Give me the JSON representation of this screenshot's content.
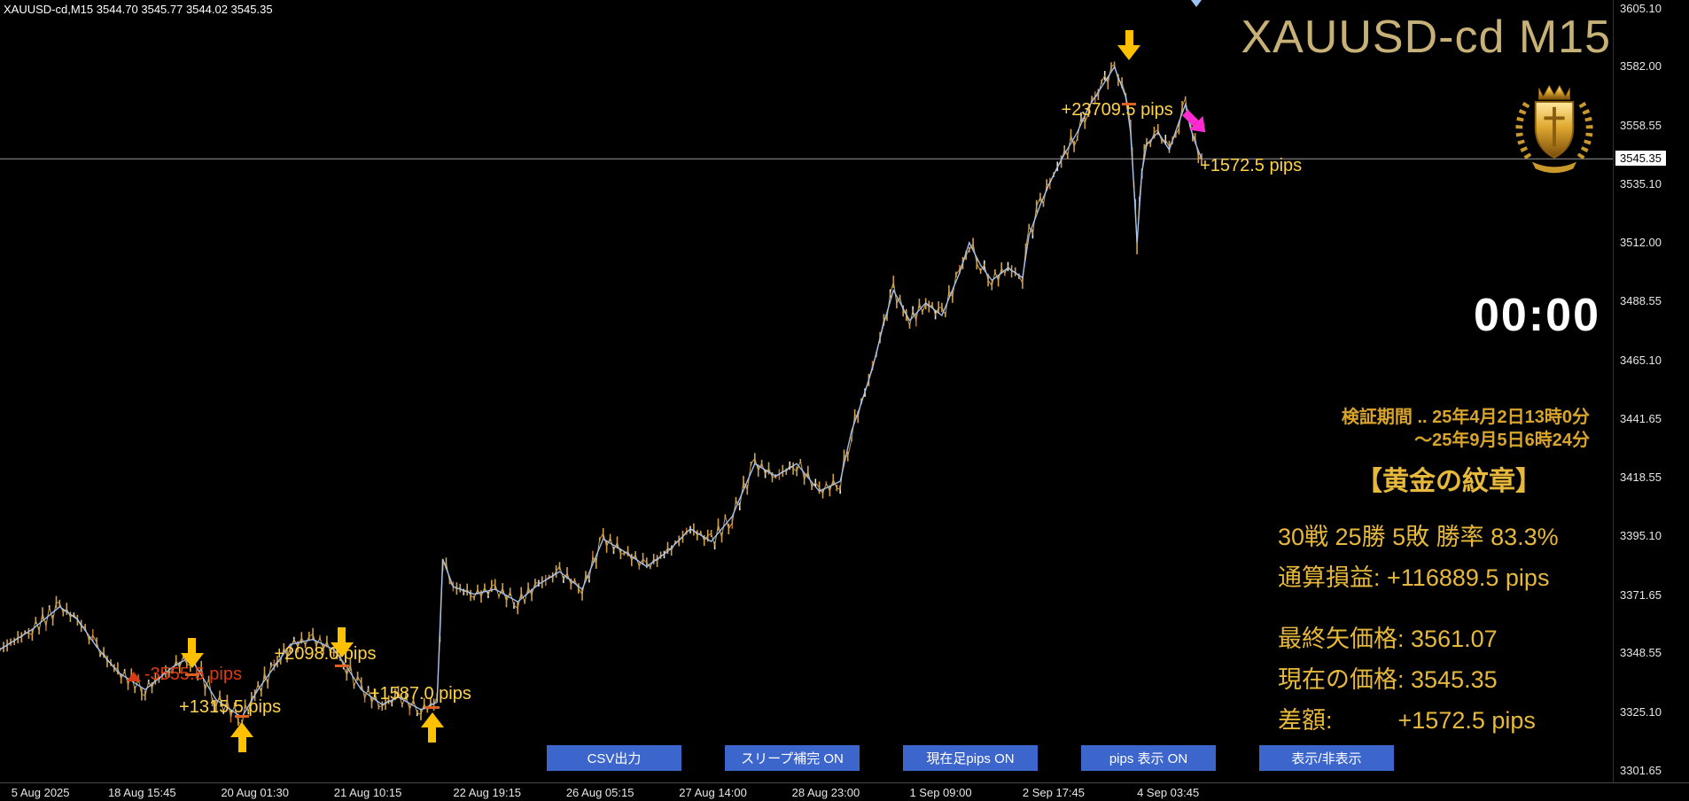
{
  "window": {
    "ohlc_line": "XAUUSD-cd,M15  3544.70 3545.77 3544.02 3545.35"
  },
  "header": {
    "title": "XAUUSD-cd M15"
  },
  "timer": {
    "value": "00:00"
  },
  "stats": {
    "period_line1": "検証期間 .. 25年4月2日13時0分",
    "period_line2": "～25年9月5日6時24分",
    "emblem_title": "【黄金の紋章】",
    "record": "30戦 25勝 5敗  勝率 83.3%",
    "total_label": "通算損益:",
    "total_value": "+116889.5 pips",
    "last_label": "最終矢価格:",
    "last_value": "3561.07",
    "current_label": "現在の価格:",
    "current_value": "3545.35",
    "diff_label": "差額:",
    "diff_value": "+1572.5 pips"
  },
  "buttons": [
    {
      "name": "csv-export-button",
      "label": "CSV出力"
    },
    {
      "name": "sleep-complete-toggle",
      "label": "スリープ補完 ON"
    },
    {
      "name": "current-bar-pips-toggle",
      "label": "現在足pips ON"
    },
    {
      "name": "pips-display-toggle",
      "label": "pips 表示  ON"
    },
    {
      "name": "show-hide-toggle",
      "label": "表示/非表示"
    }
  ],
  "price_axis": {
    "labels": [
      {
        "label": "3605.10",
        "value": 3605.1
      },
      {
        "label": "3582.00",
        "value": 3582.0
      },
      {
        "label": "3558.55",
        "value": 3558.55
      },
      {
        "label": "3535.10",
        "value": 3535.1
      },
      {
        "label": "3512.00",
        "value": 3512.0
      },
      {
        "label": "3488.55",
        "value": 3488.55
      },
      {
        "label": "3465.10",
        "value": 3465.1
      },
      {
        "label": "3441.65",
        "value": 3441.65
      },
      {
        "label": "3418.55",
        "value": 3418.55
      },
      {
        "label": "3395.10",
        "value": 3395.1
      },
      {
        "label": "3371.65",
        "value": 3371.65
      },
      {
        "label": "3348.55",
        "value": 3348.55
      },
      {
        "label": "3325.10",
        "value": 3325.1
      },
      {
        "label": "3301.65",
        "value": 3301.65
      }
    ],
    "current_label": "3545.35",
    "current_value": 3545.35
  },
  "time_axis": [
    {
      "label": "5 Aug 2025",
      "x": 0.007
    },
    {
      "label": "18 Aug 15:45",
      "x": 0.067
    },
    {
      "label": "20 Aug 01:30",
      "x": 0.137
    },
    {
      "label": "21 Aug 10:15",
      "x": 0.207
    },
    {
      "label": "22 Aug 19:15",
      "x": 0.281
    },
    {
      "label": "26 Aug 05:15",
      "x": 0.351
    },
    {
      "label": "27 Aug 14:00",
      "x": 0.421
    },
    {
      "label": "28 Aug 23:00",
      "x": 0.491
    },
    {
      "label": "1 Sep 09:00",
      "x": 0.564
    },
    {
      "label": "2 Sep 17:45",
      "x": 0.634
    },
    {
      "label": "4 Sep 03:45",
      "x": 0.705
    }
  ],
  "chart_data": {
    "type": "candlestick",
    "symbol": "XAUUSD-cd",
    "timeframe": "M15",
    "ylim": [
      3301.65,
      3605.1
    ],
    "current_price": 3545.35,
    "colors": {
      "candle_gold": "#d2a04a",
      "candle_light": "#ece2cc",
      "overlay_blue": "#a9c6f5",
      "price_line": "#9a9a9a",
      "win_label": "#ffd24a",
      "loss_label": "#dc3a12",
      "arrow_yellow": "#ffc000",
      "arrow_magenta": "#ff2ad0",
      "entry_tick": "#e06020",
      "button_blue": "#3d66cc",
      "gold_text": "#e6b83c"
    },
    "series": [
      {
        "name": "price",
        "points": [
          [
            0.0,
            3350
          ],
          [
            0.02,
            3358
          ],
          [
            0.037,
            3367
          ],
          [
            0.048,
            3362
          ],
          [
            0.06,
            3351
          ],
          [
            0.073,
            3341
          ],
          [
            0.09,
            3334
          ],
          [
            0.107,
            3343
          ],
          [
            0.118,
            3347
          ],
          [
            0.134,
            3330
          ],
          [
            0.15,
            3323
          ],
          [
            0.16,
            3334
          ],
          [
            0.17,
            3343
          ],
          [
            0.18,
            3352
          ],
          [
            0.194,
            3354
          ],
          [
            0.207,
            3350
          ],
          [
            0.215,
            3343
          ],
          [
            0.224,
            3334
          ],
          [
            0.237,
            3328
          ],
          [
            0.247,
            3331
          ],
          [
            0.261,
            3326
          ],
          [
            0.271,
            3329
          ],
          [
            0.2745,
            3386
          ],
          [
            0.281,
            3375
          ],
          [
            0.294,
            3372
          ],
          [
            0.307,
            3374
          ],
          [
            0.321,
            3369
          ],
          [
            0.334,
            3376
          ],
          [
            0.347,
            3381
          ],
          [
            0.361,
            3374
          ],
          [
            0.374,
            3394
          ],
          [
            0.387,
            3389
          ],
          [
            0.401,
            3383
          ],
          [
            0.414,
            3389
          ],
          [
            0.428,
            3398
          ],
          [
            0.441,
            3393
          ],
          [
            0.454,
            3403
          ],
          [
            0.468,
            3424
          ],
          [
            0.481,
            3419
          ],
          [
            0.494,
            3424
          ],
          [
            0.508,
            3413
          ],
          [
            0.521,
            3417
          ],
          [
            0.528,
            3437
          ],
          [
            0.534,
            3448
          ],
          [
            0.541,
            3462
          ],
          [
            0.548,
            3480
          ],
          [
            0.554,
            3493
          ],
          [
            0.564,
            3481
          ],
          [
            0.574,
            3488
          ],
          [
            0.584,
            3483
          ],
          [
            0.595,
            3500
          ],
          [
            0.601,
            3512
          ],
          [
            0.608,
            3503
          ],
          [
            0.615,
            3497
          ],
          [
            0.625,
            3502
          ],
          [
            0.634,
            3498
          ],
          [
            0.638,
            3515
          ],
          [
            0.645,
            3527
          ],
          [
            0.651,
            3536
          ],
          [
            0.658,
            3545
          ],
          [
            0.668,
            3556
          ],
          [
            0.675,
            3566
          ],
          [
            0.685,
            3576
          ],
          [
            0.691,
            3582
          ],
          [
            0.698,
            3570
          ],
          [
            0.701,
            3556
          ],
          [
            0.703,
            3535
          ],
          [
            0.705,
            3512
          ],
          [
            0.708,
            3540
          ],
          [
            0.711,
            3551
          ],
          [
            0.718,
            3556
          ],
          [
            0.725,
            3549
          ],
          [
            0.731,
            3560
          ],
          [
            0.735,
            3567
          ],
          [
            0.738,
            3558
          ],
          [
            0.741,
            3552
          ],
          [
            0.745,
            3545.35
          ]
        ]
      }
    ],
    "annotations": [
      {
        "type": "label",
        "x": 0.658,
        "price": 3564,
        "text": "+23709.5 pips",
        "color": "#ffd24a",
        "name": "closed-trade-pips-label-1"
      },
      {
        "type": "arrow-down",
        "x": 0.7,
        "price": 3584,
        "color": "#ffc000",
        "name": "exit-arrow-down-top"
      },
      {
        "type": "dash",
        "x": 0.7,
        "price": 3567,
        "color": "#e06020",
        "name": "trade-price-tick-1"
      },
      {
        "type": "arrow-se",
        "x": 0.741,
        "price": 3559,
        "color": "#ff2ad0",
        "name": "active-trade-arrow"
      },
      {
        "type": "label",
        "x": 0.744,
        "price": 3542,
        "text": "+1572.5 pips",
        "color": "#ffd24a",
        "name": "active-trade-pips-label"
      },
      {
        "type": "triangle-up",
        "x": 0.083,
        "price": 3339.5,
        "color": "#dc3a12",
        "name": "loss-trade-marker"
      },
      {
        "type": "label",
        "x": 0.0895,
        "price": 3339.5,
        "text": "-3555.5 pips",
        "color": "#dc3a12",
        "name": "closed-trade-pips-label-loss"
      },
      {
        "type": "arrow-down",
        "x": 0.119,
        "price": 3342,
        "color": "#ffc000",
        "name": "sell-arrow-down-1"
      },
      {
        "type": "dash",
        "x": 0.119,
        "price": 3340,
        "color": "#e06020",
        "name": "trade-price-tick-2"
      },
      {
        "type": "label",
        "x": 0.111,
        "price": 3326.5,
        "text": "+1315.5 pips",
        "color": "#ffd24a",
        "name": "closed-trade-pips-label-2"
      },
      {
        "type": "arrow-up",
        "x": 0.15,
        "price": 3321,
        "color": "#ffc000",
        "name": "buy-arrow-up-1"
      },
      {
        "type": "dash",
        "x": 0.15,
        "price": 3323.5,
        "color": "#e06020",
        "name": "trade-price-tick-3"
      },
      {
        "type": "label",
        "x": 0.17,
        "price": 3347.5,
        "text": "+2098.0 pips",
        "color": "#ffd24a",
        "name": "closed-trade-pips-label-3"
      },
      {
        "type": "arrow-down",
        "x": 0.212,
        "price": 3346,
        "color": "#ffc000",
        "name": "sell-arrow-down-2"
      },
      {
        "type": "dash",
        "x": 0.212,
        "price": 3343.5,
        "color": "#e06020",
        "name": "trade-price-tick-4"
      },
      {
        "type": "label",
        "x": 0.229,
        "price": 3331.5,
        "text": "+1587.0 pips",
        "color": "#ffd24a",
        "name": "closed-trade-pips-label-4"
      },
      {
        "type": "arrow-up",
        "x": 0.268,
        "price": 3325,
        "color": "#ffc000",
        "name": "buy-arrow-up-2"
      },
      {
        "type": "dash",
        "x": 0.268,
        "price": 3327,
        "color": "#e06020",
        "name": "trade-price-tick-5"
      },
      {
        "type": "bar-marker",
        "x": 0.742,
        "color": "#9cc2f2",
        "name": "last-bar-cursor"
      }
    ]
  }
}
